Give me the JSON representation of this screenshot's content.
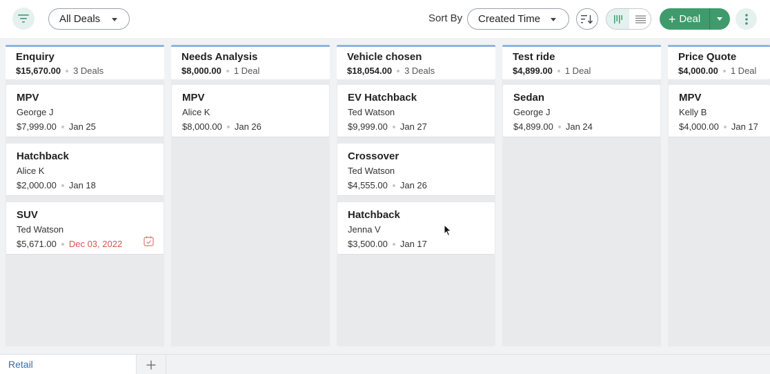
{
  "toolbar": {
    "filter_icon": "filter-icon",
    "view_select": {
      "value": "All Deals"
    },
    "sort": {
      "label": "Sort By",
      "value": "Created Time"
    },
    "new_deal_label": "Deal",
    "accent_color": "#3f9b6b"
  },
  "columns": [
    {
      "name": "Enquiry",
      "amount": "$15,670.00",
      "count": "3 Deals",
      "cards": [
        {
          "title": "MPV",
          "contact": "George J",
          "amount": "$7,999.00",
          "date": "Jan 25"
        },
        {
          "title": "Hatchback",
          "contact": "Alice K",
          "amount": "$2,000.00",
          "date": "Jan 18"
        },
        {
          "title": "SUV",
          "contact": "Ted Watson",
          "amount": "$5,671.00",
          "date": "Dec 03, 2022",
          "overdue": true
        }
      ]
    },
    {
      "name": "Needs Analysis",
      "amount": "$8,000.00",
      "count": "1 Deal",
      "cards": [
        {
          "title": "MPV",
          "contact": "Alice K",
          "amount": "$8,000.00",
          "date": "Jan 26"
        }
      ]
    },
    {
      "name": "Vehicle chosen",
      "amount": "$18,054.00",
      "count": "3 Deals",
      "cards": [
        {
          "title": "EV Hatchback",
          "contact": "Ted Watson",
          "amount": "$9,999.00",
          "date": "Jan 27"
        },
        {
          "title": "Crossover",
          "contact": "Ted Watson",
          "amount": "$4,555.00",
          "date": "Jan 26"
        },
        {
          "title": "Hatchback",
          "contact": "Jenna V",
          "amount": "$3,500.00",
          "date": "Jan 17"
        }
      ]
    },
    {
      "name": "Test ride",
      "amount": "$4,899.00",
      "count": "1 Deal",
      "cards": [
        {
          "title": "Sedan",
          "contact": "George J",
          "amount": "$4,899.00",
          "date": "Jan 24"
        }
      ]
    },
    {
      "name": "Price Quote",
      "amount": "$4,000.00",
      "count": "1 Deal",
      "cards": [
        {
          "title": "MPV",
          "contact": "Kelly B",
          "amount": "$4,000.00",
          "date": "Jan 17"
        }
      ]
    }
  ],
  "footer": {
    "pipeline_tab": "Retail"
  }
}
